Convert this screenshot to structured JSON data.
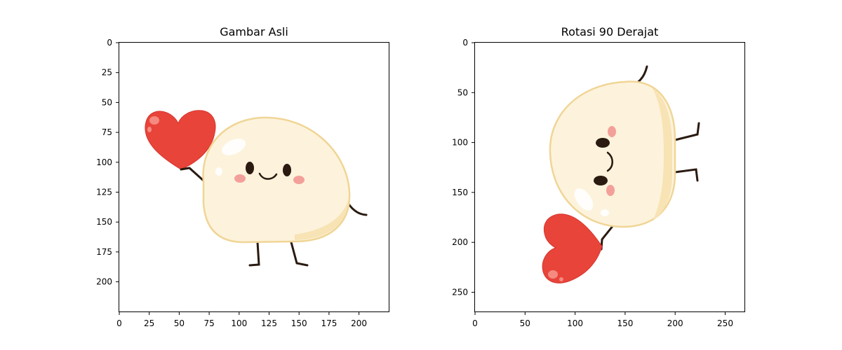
{
  "figure": {
    "panels": [
      {
        "title": "Gambar Asli",
        "x_ticks": [
          "0",
          "25",
          "50",
          "75",
          "100",
          "125",
          "150",
          "175",
          "200"
        ],
        "y_ticks": [
          "0",
          "25",
          "50",
          "75",
          "100",
          "125",
          "150",
          "175",
          "200"
        ],
        "image_description": "cartoon mochi character holding a red heart"
      },
      {
        "title": "Rotasi 90 Derajat",
        "x_ticks": [
          "0",
          "50",
          "100",
          "150",
          "200",
          "250"
        ],
        "y_ticks": [
          "0",
          "50",
          "100",
          "150",
          "200",
          "250"
        ],
        "image_description": "same mochi character rotated 90 degrees"
      }
    ]
  },
  "colors": {
    "heart": "#e8443a",
    "heart_highlight": "#f58a80",
    "body_fill": "#fdf3dc",
    "body_outline": "#f0d596",
    "body_shade": "#f7e3b4",
    "ink": "#2a1a10",
    "blush": "#f4a09a"
  }
}
